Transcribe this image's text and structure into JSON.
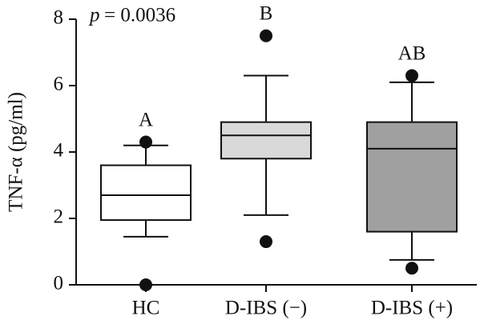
{
  "chart_data": {
    "type": "box",
    "y_label": "TNF-α (pg/ml)",
    "annotation": {
      "symbol": "p",
      "text": "= 0.0036"
    },
    "categories": [
      "HC",
      "D-IBS (−)",
      "D-IBS (+)"
    ],
    "group_labels": [
      "A",
      "B",
      "AB"
    ],
    "colors": [
      "#ffffff",
      "#d9d9d9",
      "#a0a0a0"
    ],
    "whisker_low": [
      1.45,
      2.1,
      0.75
    ],
    "q1": [
      1.95,
      3.8,
      1.6
    ],
    "median": [
      2.7,
      4.5,
      4.1
    ],
    "q3": [
      3.6,
      4.9,
      4.9
    ],
    "whisker_high": [
      4.2,
      6.3,
      6.1
    ],
    "outliers": [
      [
        4.3,
        0
      ],
      [
        7.5,
        1.3
      ],
      [
        6.3,
        0.5
      ]
    ],
    "ylim": [
      0,
      8
    ],
    "yticks": [
      0,
      2,
      4,
      6,
      8
    ]
  }
}
